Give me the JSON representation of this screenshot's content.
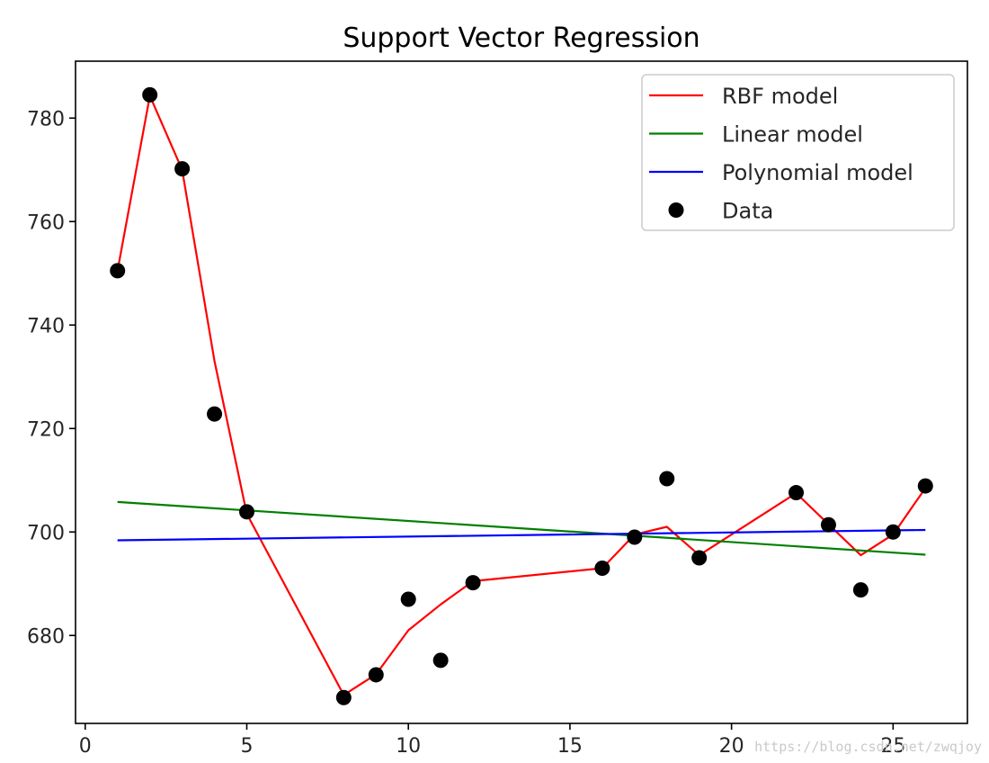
{
  "chart_data": {
    "type": "scatter",
    "title": "Support Vector Regression",
    "xlabel": "",
    "ylabel": "",
    "xlim": [
      -0.3,
      27.3
    ],
    "ylim": [
      663,
      791
    ],
    "x_ticks": [
      0,
      5,
      10,
      15,
      20,
      25
    ],
    "y_ticks": [
      680,
      700,
      720,
      740,
      760,
      780
    ],
    "grid": false,
    "legend_position": "top-right",
    "series": [
      {
        "name": "RBF model",
        "type": "line",
        "color": "#ff0000",
        "x": [
          1,
          2,
          3,
          4,
          5,
          8,
          9,
          10,
          11,
          12,
          16,
          17,
          18,
          19,
          22,
          23,
          24,
          25,
          26
        ],
        "y": [
          750.5,
          784.3,
          770.0,
          733.0,
          703.5,
          668.5,
          672.5,
          681.0,
          686.0,
          690.5,
          693.0,
          699.5,
          701.0,
          695.5,
          707.5,
          701.5,
          695.5,
          699.5,
          708.5
        ]
      },
      {
        "name": "Linear model",
        "type": "line",
        "color": "#008000",
        "x": [
          1,
          26
        ],
        "y": [
          705.8,
          695.6
        ]
      },
      {
        "name": "Polynomial model",
        "type": "line",
        "color": "#0000ff",
        "x": [
          1,
          26
        ],
        "y": [
          698.4,
          700.4
        ]
      },
      {
        "name": "Data",
        "type": "scatter",
        "color": "#000000",
        "x": [
          1,
          2,
          3,
          4,
          5,
          8,
          9,
          10,
          11,
          12,
          16,
          17,
          18,
          19,
          22,
          23,
          24,
          25,
          26
        ],
        "y": [
          750.5,
          784.5,
          770.2,
          722.8,
          703.9,
          668.0,
          672.4,
          687.0,
          675.2,
          690.2,
          693.0,
          699.0,
          710.3,
          695.0,
          707.6,
          701.4,
          688.8,
          700.0,
          708.9
        ]
      }
    ]
  },
  "watermark": "https://blog.csdn.net/zwqjoy"
}
